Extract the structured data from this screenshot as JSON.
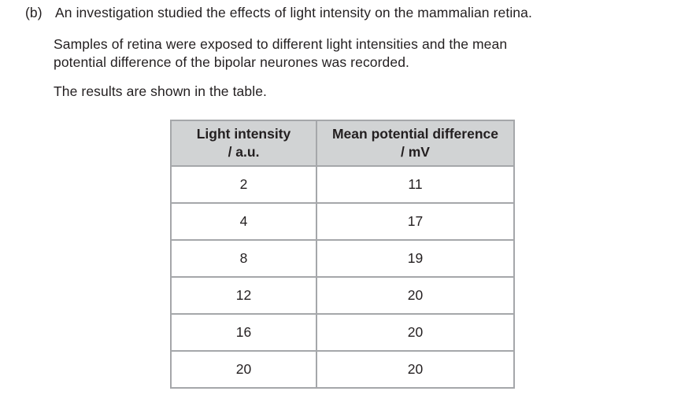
{
  "question": {
    "part_label": "(b)",
    "intro": "An investigation studied the effects of light intensity on the mammalian retina.",
    "paragraph2_line1": "Samples of retina were exposed to different light intensities and the mean",
    "paragraph2_line2": "potential difference of the bipolar neurones was recorded.",
    "paragraph3": "The results are shown in the table."
  },
  "table": {
    "header": {
      "col1_line1": "Light intensity",
      "col1_line2": "/ a.u.",
      "col2_line1": "Mean potential difference",
      "col2_line2": "/ mV"
    },
    "rows": [
      [
        "2",
        "11"
      ],
      [
        "4",
        "17"
      ],
      [
        "8",
        "19"
      ],
      [
        "12",
        "20"
      ],
      [
        "16",
        "20"
      ],
      [
        "20",
        "20"
      ]
    ]
  },
  "colors": {
    "text": "#231f20",
    "header_bg": "#d1d3d4",
    "cell_border": "#a5a7aa",
    "outer_border": "#8b8d90",
    "page_bg": "#ffffff"
  }
}
